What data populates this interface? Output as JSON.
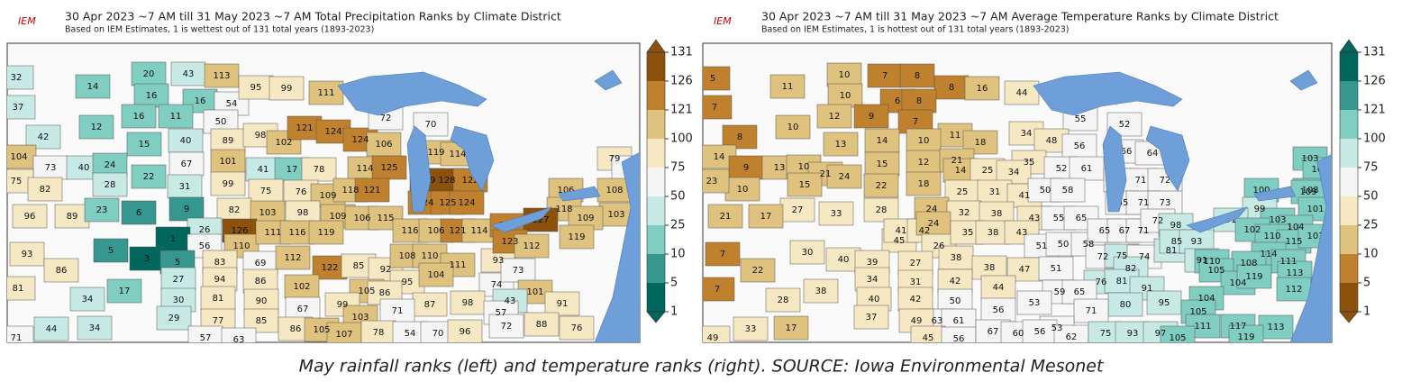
{
  "maps": [
    {
      "logo": "IEM",
      "title": "30 Apr 2023 ~7 AM till 31 May 2023 ~7 AM Total Precipitation Ranks by Climate District",
      "subtitle": "Based on IEM Estimates, 1 is wettest out of 131 total years (1893-2023)",
      "colorbar": {
        "ticks": [
          131,
          126,
          121,
          100,
          75,
          50,
          25,
          10,
          5,
          1
        ],
        "colors": [
          "#8c510a",
          "#bf812d",
          "#dfc27d",
          "#f6e8c3",
          "#f5f5f5",
          "#c7eae5",
          "#80cdc1",
          "#35978f",
          "#01665e"
        ]
      },
      "districts": [
        32,
        14,
        37,
        12,
        42,
        20,
        43,
        113,
        16,
        16,
        54,
        95,
        99,
        111,
        16,
        11,
        50,
        15,
        40,
        89,
        98,
        102,
        121,
        124,
        124,
        106,
        72,
        70,
        104,
        73,
        40,
        24,
        67,
        101,
        41,
        17,
        78,
        114,
        125,
        119,
        114,
        75,
        82,
        28,
        22,
        31,
        99,
        129,
        128,
        122,
        79,
        69,
        75,
        76,
        109,
        118,
        121,
        108,
        96,
        89,
        23,
        6,
        9,
        82,
        103,
        98,
        109,
        106,
        115,
        124,
        125,
        124,
        106,
        118,
        103,
        26,
        1,
        56,
        126,
        110,
        111,
        116,
        119,
        116,
        106,
        121,
        114,
        122,
        127,
        109,
        93,
        5,
        3,
        86,
        5,
        83,
        69,
        112,
        122,
        85,
        92,
        108,
        110,
        111,
        93,
        123,
        112,
        119,
        27,
        94,
        86,
        95,
        104,
        74,
        73,
        101,
        81,
        17,
        34,
        30,
        81,
        90,
        102,
        105,
        86,
        87,
        98,
        43,
        91,
        67,
        99,
        71,
        29,
        77,
        85,
        103,
        57,
        44,
        34,
        86,
        105,
        107,
        78,
        54,
        70,
        96,
        72,
        88,
        76,
        71,
        57,
        63
      ]
    },
    {
      "logo": "IEM",
      "title": "30 Apr 2023 ~7 AM till 31 May 2023 ~7 AM Average Temperature Ranks by Climate District",
      "subtitle": "Based on IEM Estimates, 1 is hottest out of 131 total years (1893-2023)",
      "colorbar": {
        "ticks": [
          131,
          126,
          121,
          100,
          75,
          50,
          25,
          10,
          5,
          1
        ],
        "colors": [
          "#01665e",
          "#35978f",
          "#80cdc1",
          "#c7eae5",
          "#f5f5f5",
          "#f6e8c3",
          "#dfc27d",
          "#bf812d",
          "#8c510a"
        ]
      },
      "districts": [
        5,
        11,
        7,
        10,
        8,
        10,
        7,
        8,
        8,
        16,
        44,
        10,
        6,
        8,
        12,
        9,
        7,
        11,
        18,
        55,
        52,
        34,
        48,
        56,
        13,
        14,
        10,
        66,
        64,
        14,
        9,
        13,
        10,
        21,
        24,
        15,
        12,
        21,
        35,
        52,
        61,
        10,
        15,
        22,
        18,
        14,
        25,
        34,
        63,
        71,
        72,
        103,
        103,
        23,
        27,
        21,
        17,
        25,
        31,
        41,
        50,
        58,
        108,
        33,
        28,
        24,
        32,
        38,
        43,
        55,
        65,
        65,
        71,
        73,
        100,
        99,
        109,
        101,
        45,
        41,
        42,
        24,
        26,
        35,
        38,
        43,
        51,
        50,
        58,
        65,
        67,
        71,
        72,
        98,
        91,
        103,
        104,
        7,
        30,
        40,
        39,
        27,
        38,
        38,
        47,
        51,
        72,
        75,
        74,
        81,
        85,
        93,
        102,
        110,
        115,
        101,
        91,
        114,
        111,
        22,
        34,
        31,
        42,
        82,
        76,
        59,
        65,
        110,
        108,
        38,
        40,
        42,
        50,
        44,
        81,
        91,
        105,
        104,
        7,
        28,
        53,
        80,
        95,
        104,
        105,
        119,
        113,
        112,
        63,
        56,
        37,
        49,
        61,
        17,
        33,
        49,
        71,
        53,
        45,
        56,
        67,
        60,
        56,
        62,
        75,
        93,
        97,
        111,
        117,
        113,
        119,
        105
      ]
    }
  ],
  "caption": "May rainfall ranks (left) and temperature ranks (right). SOURCE: Iowa Environmental Mesonet"
}
